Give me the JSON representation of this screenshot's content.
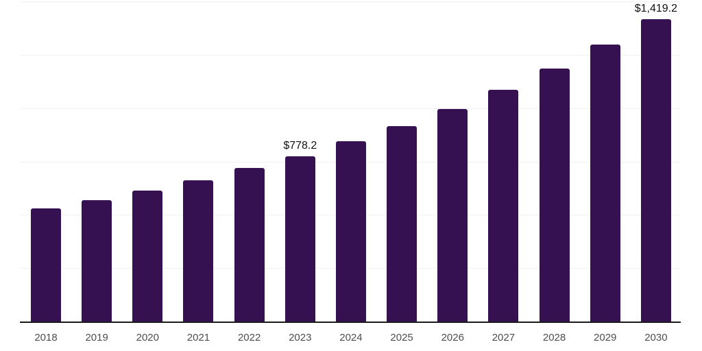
{
  "chart": {
    "background_color": "#ffffff",
    "bar_color": "#351151",
    "axis_line_color": "#1a1a1a",
    "gridline_color": "#f1f1f1",
    "tick_label_color": "#4d4d4d",
    "data_label_color": "#111111"
  },
  "chart_data": {
    "type": "bar",
    "title": "",
    "xlabel": "",
    "ylabel": "",
    "categories": [
      "2018",
      "2019",
      "2020",
      "2021",
      "2022",
      "2023",
      "2024",
      "2025",
      "2026",
      "2027",
      "2028",
      "2029",
      "2030"
    ],
    "values": [
      534,
      573,
      617,
      666,
      724,
      778.2,
      849,
      919,
      1000,
      1089,
      1188,
      1301,
      1419.2
    ],
    "data_labels": [
      null,
      null,
      null,
      null,
      null,
      "$778.2",
      null,
      null,
      null,
      null,
      null,
      null,
      "$1,419.2"
    ],
    "ylim": [
      0,
      1500
    ],
    "gridline_values": [
      250,
      500,
      750,
      1000,
      1250,
      1500
    ],
    "y_axis_tick_labels_visible": false,
    "grid": true,
    "legend": false
  }
}
